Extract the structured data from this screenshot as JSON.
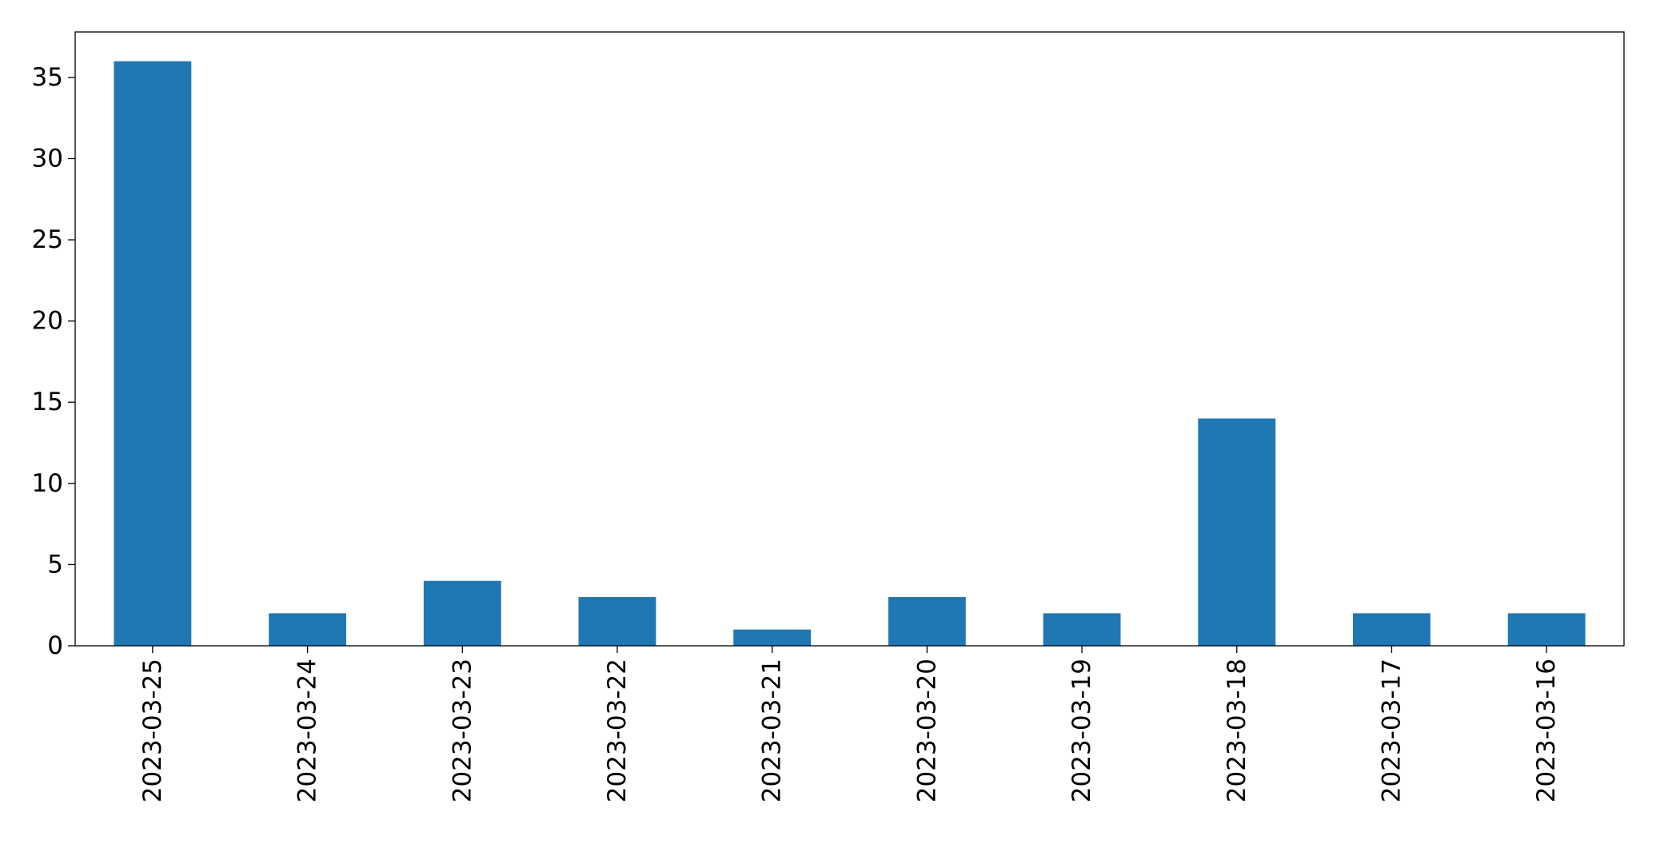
{
  "chart_data": {
    "type": "bar",
    "categories": [
      "2023-03-25",
      "2023-03-24",
      "2023-03-23",
      "2023-03-22",
      "2023-03-21",
      "2023-03-20",
      "2023-03-19",
      "2023-03-18",
      "2023-03-17",
      "2023-03-16"
    ],
    "values": [
      36,
      2,
      4,
      3,
      1,
      3,
      2,
      14,
      2,
      2
    ],
    "color": "#1f77b4",
    "ylim": [
      0,
      37.8
    ],
    "yticks": [
      0,
      5,
      10,
      15,
      20,
      25,
      30,
      35
    ],
    "grid": false
  }
}
